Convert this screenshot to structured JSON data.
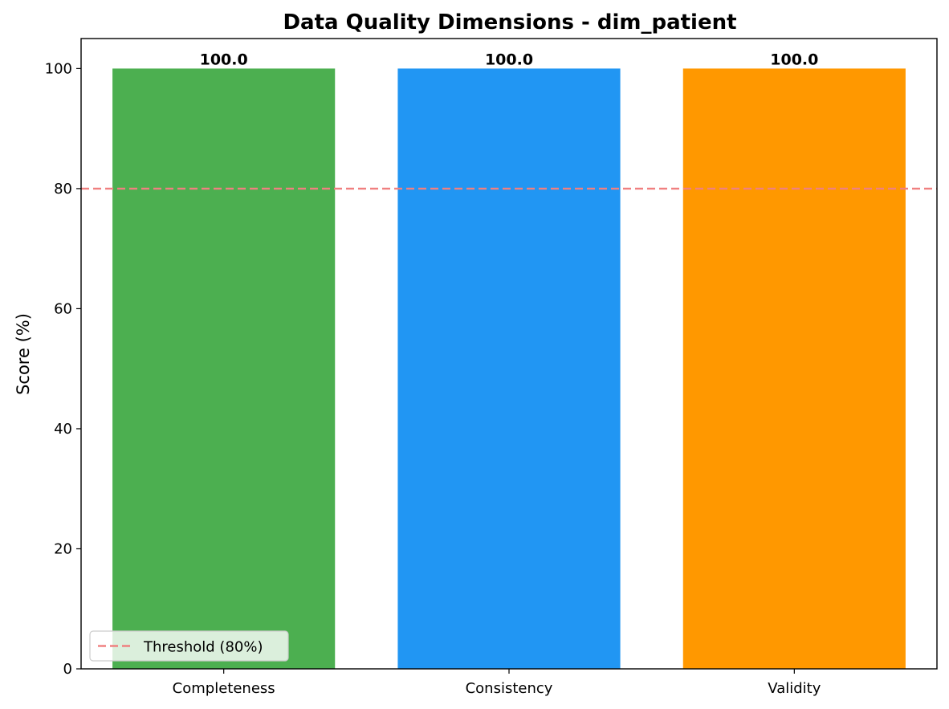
{
  "chart_data": {
    "type": "bar",
    "title": "Data Quality Dimensions - dim_patient",
    "xlabel": "",
    "ylabel": "Score (%)",
    "categories": [
      "Completeness",
      "Consistency",
      "Validity"
    ],
    "values": [
      100.0,
      100.0,
      100.0
    ],
    "value_labels": [
      "100.0",
      "100.0",
      "100.0"
    ],
    "bar_colors": [
      "#4caf50",
      "#2196f3",
      "#ff9800"
    ],
    "ylim": [
      0,
      105
    ],
    "yticks": [
      0,
      20,
      40,
      60,
      80,
      100
    ],
    "threshold": {
      "value": 80,
      "label": "Threshold (80%)",
      "color": "#f08080",
      "style": "dashed"
    },
    "grid": false,
    "legend_position": "lower-left"
  }
}
